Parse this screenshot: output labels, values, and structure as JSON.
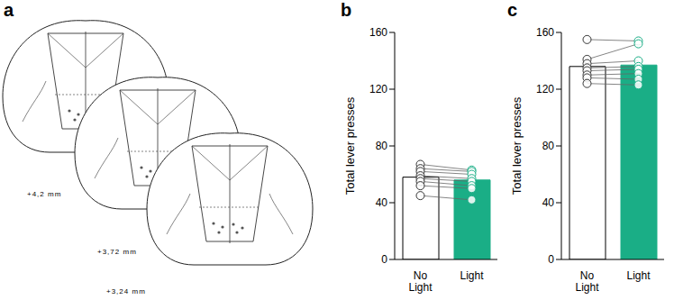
{
  "panels": [
    "a",
    "b",
    "c"
  ],
  "diagram": {
    "sections": [
      {
        "label": "+4,2 mm"
      },
      {
        "label": "+3,72 mm"
      },
      {
        "label": "+3,24 mm"
      }
    ]
  },
  "chart_data": [
    {
      "type": "bar",
      "categories": [
        "No Light",
        "Light"
      ],
      "values": [
        58,
        56
      ],
      "colors": [
        "#ffffff",
        "#1aae86"
      ],
      "y_label": "Total lever presses",
      "ylim": [
        0,
        160
      ],
      "yticks": [
        0,
        40,
        80,
        120,
        160
      ],
      "points": [
        [
          67,
          64,
          62,
          59,
          57,
          55,
          52,
          45
        ],
        [
          63,
          62,
          60,
          57,
          55,
          52,
          50,
          42
        ]
      ]
    },
    {
      "type": "bar",
      "categories": [
        "No Light",
        "Light"
      ],
      "values": [
        136,
        137
      ],
      "colors": [
        "#ffffff",
        "#1aae86"
      ],
      "y_label": "Total lever presses",
      "ylim": [
        0,
        160
      ],
      "yticks": [
        0,
        40,
        80,
        120,
        160
      ],
      "points": [
        [
          155,
          141,
          138,
          135,
          133,
          130,
          128,
          124
        ],
        [
          154,
          152,
          140,
          136,
          134,
          131,
          127,
          123
        ]
      ]
    }
  ]
}
